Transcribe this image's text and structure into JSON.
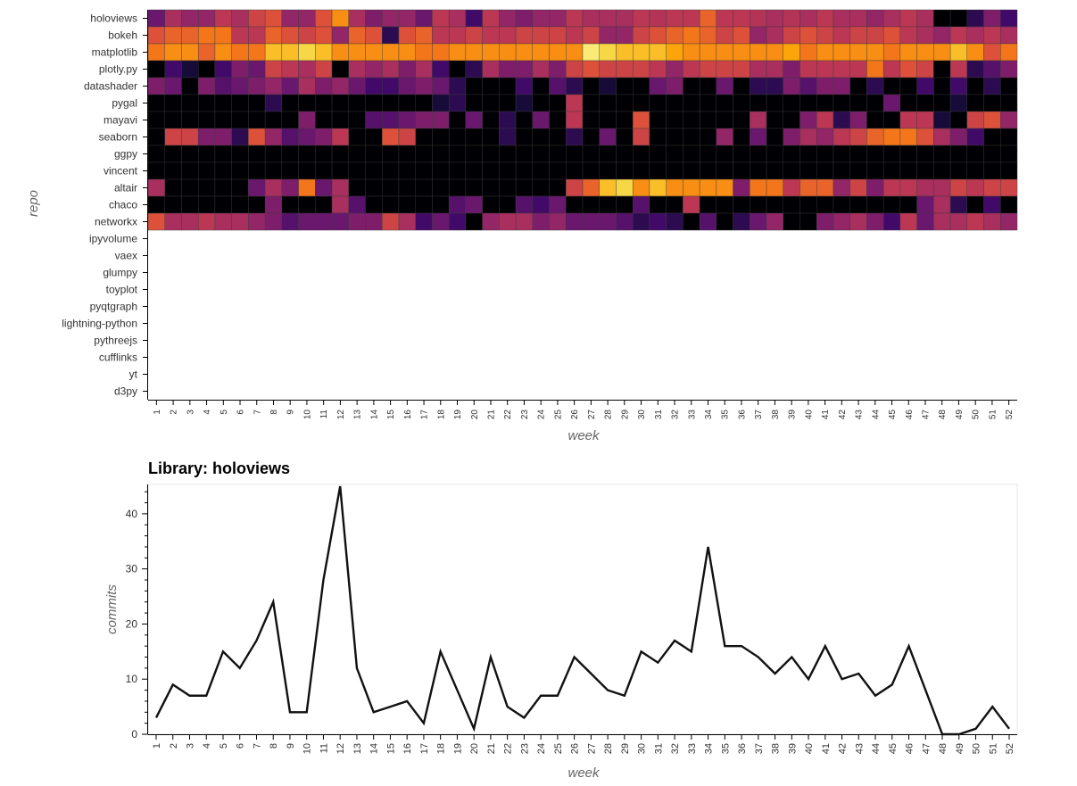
{
  "chart_data": [
    {
      "type": "heatmap",
      "title": "",
      "xlabel": "week",
      "ylabel": "repo",
      "x_categories": [
        "1",
        "2",
        "3",
        "4",
        "5",
        "6",
        "7",
        "8",
        "9",
        "10",
        "11",
        "12",
        "13",
        "14",
        "15",
        "16",
        "17",
        "18",
        "19",
        "20",
        "21",
        "22",
        "23",
        "24",
        "25",
        "26",
        "27",
        "28",
        "29",
        "30",
        "31",
        "32",
        "33",
        "34",
        "35",
        "36",
        "37",
        "38",
        "39",
        "40",
        "41",
        "42",
        "43",
        "44",
        "45",
        "46",
        "47",
        "48",
        "49",
        "50",
        "51",
        "52"
      ],
      "y_categories": [
        "holoviews",
        "bokeh",
        "matplotlib",
        "plotly.py",
        "datashader",
        "pygal",
        "mayavi",
        "seaborn",
        "ggpy",
        "vincent",
        "altair",
        "chaco",
        "networkx",
        "ipyvolume",
        "vaex",
        "glumpy",
        "toyplot",
        "pyqtgraph",
        "lightning-python",
        "pythreejs",
        "cufflinks",
        "yt",
        "d3py"
      ],
      "colormap": "inferno",
      "color_scale": "per-repo relative commit intensity (0 = black, 1 = pale yellow)",
      "grid": true,
      "legend": "none",
      "rows": [
        {
          "repo": "holoviews",
          "values": [
            0.3,
            0.45,
            0.4,
            0.4,
            0.5,
            0.45,
            0.55,
            0.6,
            0.4,
            0.4,
            0.6,
            0.75,
            0.45,
            0.35,
            0.4,
            0.4,
            0.3,
            0.5,
            0.45,
            0.2,
            0.5,
            0.4,
            0.35,
            0.4,
            0.4,
            0.5,
            0.45,
            0.45,
            0.45,
            0.5,
            0.48,
            0.5,
            0.5,
            0.65,
            0.5,
            0.5,
            0.48,
            0.45,
            0.48,
            0.45,
            0.5,
            0.45,
            0.45,
            0.4,
            0.45,
            0.5,
            0.45,
            0.0,
            0.0,
            0.15,
            0.35,
            0.2
          ]
        },
        {
          "repo": "bokeh",
          "values": [
            0.6,
            0.65,
            0.65,
            0.7,
            0.7,
            0.5,
            0.5,
            0.65,
            0.6,
            0.55,
            0.6,
            0.4,
            0.65,
            0.6,
            0.15,
            0.6,
            0.65,
            0.5,
            0.5,
            0.55,
            0.5,
            0.5,
            0.55,
            0.55,
            0.55,
            0.5,
            0.55,
            0.4,
            0.4,
            0.55,
            0.6,
            0.65,
            0.7,
            0.65,
            0.55,
            0.6,
            0.4,
            0.45,
            0.55,
            0.6,
            0.55,
            0.5,
            0.55,
            0.55,
            0.6,
            0.5,
            0.45,
            0.4,
            0.5,
            0.45,
            0.5,
            0.45
          ]
        },
        {
          "repo": "matplotlib",
          "values": [
            0.7,
            0.75,
            0.75,
            0.65,
            0.75,
            0.7,
            0.7,
            0.85,
            0.85,
            0.9,
            0.85,
            0.75,
            0.75,
            0.75,
            0.75,
            0.75,
            0.7,
            0.7,
            0.75,
            0.75,
            0.75,
            0.75,
            0.75,
            0.75,
            0.75,
            0.75,
            0.95,
            0.9,
            0.85,
            0.85,
            0.85,
            0.8,
            0.75,
            0.75,
            0.75,
            0.75,
            0.75,
            0.75,
            0.8,
            0.7,
            0.75,
            0.75,
            0.75,
            0.75,
            0.7,
            0.75,
            0.75,
            0.75,
            0.85,
            0.75,
            0.6,
            0.7
          ]
        },
        {
          "repo": "plotly.py",
          "values": [
            0.0,
            0.2,
            0.1,
            0.0,
            0.2,
            0.35,
            0.3,
            0.55,
            0.5,
            0.45,
            0.55,
            0.0,
            0.45,
            0.4,
            0.45,
            0.35,
            0.45,
            0.2,
            0.0,
            0.15,
            0.45,
            0.35,
            0.35,
            0.45,
            0.35,
            0.55,
            0.6,
            0.55,
            0.55,
            0.55,
            0.5,
            0.4,
            0.5,
            0.55,
            0.55,
            0.55,
            0.45,
            0.45,
            0.35,
            0.5,
            0.5,
            0.5,
            0.5,
            0.7,
            0.5,
            0.6,
            0.55,
            0.0,
            0.5,
            0.15,
            0.25,
            0.35
          ]
        },
        {
          "repo": "datashader",
          "values": [
            0.35,
            0.3,
            0.0,
            0.35,
            0.25,
            0.3,
            0.35,
            0.4,
            0.3,
            0.45,
            0.35,
            0.4,
            0.3,
            0.2,
            0.2,
            0.3,
            0.35,
            0.3,
            0.15,
            0.0,
            0.0,
            0.0,
            0.2,
            0.0,
            0.25,
            0.15,
            0.0,
            0.1,
            0.0,
            0.0,
            0.3,
            0.35,
            0.0,
            0.0,
            0.3,
            0.0,
            0.15,
            0.15,
            0.35,
            0.25,
            0.35,
            0.35,
            0.0,
            0.15,
            0.0,
            0.0,
            0.2,
            0.0,
            0.2,
            0.0,
            0.15,
            0.0
          ]
        },
        {
          "repo": "pygal",
          "values": [
            0.0,
            0.0,
            0.0,
            0.0,
            0.0,
            0.0,
            0.0,
            0.15,
            0.0,
            0.0,
            0.0,
            0.0,
            0.0,
            0.0,
            0.0,
            0.0,
            0.0,
            0.1,
            0.15,
            0.0,
            0.0,
            0.0,
            0.1,
            0.0,
            0.0,
            0.5,
            0.0,
            0.0,
            0.0,
            0.0,
            0.0,
            0.0,
            0.0,
            0.0,
            0.0,
            0.0,
            0.0,
            0.0,
            0.0,
            0.0,
            0.0,
            0.0,
            0.0,
            0.0,
            0.3,
            0.0,
            0.0,
            0.0,
            0.1,
            0.0,
            0.0,
            0.0
          ]
        },
        {
          "repo": "mayavi",
          "values": [
            0.0,
            0.0,
            0.0,
            0.0,
            0.0,
            0.0,
            0.0,
            0.0,
            0.0,
            0.35,
            0.0,
            0.0,
            0.0,
            0.25,
            0.25,
            0.3,
            0.35,
            0.35,
            0.0,
            0.3,
            0.0,
            0.15,
            0.0,
            0.3,
            0.0,
            0.5,
            0.0,
            0.0,
            0.0,
            0.6,
            0.0,
            0.0,
            0.0,
            0.0,
            0.0,
            0.0,
            0.45,
            0.0,
            0.0,
            0.35,
            0.5,
            0.15,
            0.35,
            0.0,
            0.0,
            0.5,
            0.5,
            0.1,
            0.0,
            0.55,
            0.6,
            0.4
          ]
        },
        {
          "repo": "seaborn",
          "values": [
            0.0,
            0.55,
            0.55,
            0.35,
            0.35,
            0.15,
            0.6,
            0.4,
            0.25,
            0.3,
            0.35,
            0.5,
            0.0,
            0.0,
            0.6,
            0.55,
            0.0,
            0.0,
            0.0,
            0.0,
            0.0,
            0.15,
            0.0,
            0.0,
            0.0,
            0.15,
            0.0,
            0.3,
            0.0,
            0.55,
            0.0,
            0.0,
            0.0,
            0.0,
            0.4,
            0.0,
            0.3,
            0.0,
            0.35,
            0.45,
            0.4,
            0.5,
            0.55,
            0.65,
            0.7,
            0.7,
            0.6,
            0.45,
            0.35,
            0.2,
            0.0,
            0.0
          ]
        },
        {
          "repo": "ggpy",
          "values": [
            0.0,
            0.0,
            0.0,
            0.0,
            0.0,
            0.0,
            0.0,
            0.0,
            0.0,
            0.0,
            0.0,
            0.0,
            0.0,
            0.0,
            0.0,
            0.0,
            0.0,
            0.0,
            0.0,
            0.0,
            0.0,
            0.0,
            0.0,
            0.0,
            0.0,
            0.0,
            0.0,
            0.0,
            0.0,
            0.0,
            0.0,
            0.0,
            0.0,
            0.0,
            0.0,
            0.0,
            0.0,
            0.0,
            0.0,
            0.0,
            0.0,
            0.0,
            0.0,
            0.0,
            0.0,
            0.0,
            0.0,
            0.0,
            0.0,
            0.0,
            0.0,
            0.0
          ]
        },
        {
          "repo": "vincent",
          "values": [
            0.0,
            0.0,
            0.0,
            0.0,
            0.0,
            0.0,
            0.0,
            0.0,
            0.0,
            0.0,
            0.0,
            0.0,
            0.0,
            0.0,
            0.0,
            0.0,
            0.0,
            0.0,
            0.0,
            0.0,
            0.0,
            0.0,
            0.0,
            0.0,
            0.0,
            0.0,
            0.0,
            0.0,
            0.0,
            0.0,
            0.0,
            0.0,
            0.0,
            0.0,
            0.0,
            0.0,
            0.0,
            0.0,
            0.0,
            0.0,
            0.0,
            0.0,
            0.0,
            0.0,
            0.0,
            0.0,
            0.0,
            0.0,
            0.0,
            0.0,
            0.0,
            0.0
          ]
        },
        {
          "repo": "altair",
          "values": [
            0.45,
            0.0,
            0.0,
            0.0,
            0.0,
            0.0,
            0.3,
            0.45,
            0.35,
            0.7,
            0.3,
            0.45,
            0.0,
            0.0,
            0.0,
            0.0,
            0.0,
            0.0,
            0.0,
            0.0,
            0.0,
            0.0,
            0.0,
            0.0,
            0.0,
            0.55,
            0.65,
            0.85,
            0.9,
            0.75,
            0.85,
            0.75,
            0.75,
            0.75,
            0.75,
            0.35,
            0.7,
            0.7,
            0.5,
            0.65,
            0.65,
            0.4,
            0.55,
            0.35,
            0.5,
            0.5,
            0.45,
            0.45,
            0.55,
            0.5,
            0.55,
            0.55
          ]
        },
        {
          "repo": "chaco",
          "values": [
            0.0,
            0.0,
            0.0,
            0.0,
            0.0,
            0.0,
            0.0,
            0.35,
            0.0,
            0.0,
            0.0,
            0.45,
            0.25,
            0.0,
            0.0,
            0.0,
            0.0,
            0.0,
            0.25,
            0.3,
            0.0,
            0.0,
            0.25,
            0.2,
            0.3,
            0.0,
            0.0,
            0.0,
            0.0,
            0.25,
            0.0,
            0.0,
            0.5,
            0.0,
            0.0,
            0.0,
            0.0,
            0.0,
            0.0,
            0.0,
            0.0,
            0.0,
            0.0,
            0.0,
            0.0,
            0.0,
            0.3,
            0.45,
            0.15,
            0.0,
            0.2,
            0.0
          ]
        },
        {
          "repo": "networkx",
          "values": [
            0.6,
            0.45,
            0.45,
            0.5,
            0.45,
            0.45,
            0.4,
            0.35,
            0.25,
            0.3,
            0.3,
            0.3,
            0.35,
            0.35,
            0.55,
            0.45,
            0.2,
            0.3,
            0.2,
            0.0,
            0.4,
            0.45,
            0.45,
            0.35,
            0.4,
            0.3,
            0.3,
            0.3,
            0.25,
            0.15,
            0.2,
            0.15,
            0.0,
            0.25,
            0.0,
            0.15,
            0.3,
            0.4,
            0.0,
            0.0,
            0.35,
            0.4,
            0.45,
            0.35,
            0.2,
            0.5,
            0.3,
            0.45,
            0.45,
            0.5,
            0.45,
            0.4
          ]
        },
        {
          "repo": "ipyvolume",
          "values": []
        },
        {
          "repo": "vaex",
          "values": []
        },
        {
          "repo": "glumpy",
          "values": []
        },
        {
          "repo": "toyplot",
          "values": []
        },
        {
          "repo": "pyqtgraph",
          "values": []
        },
        {
          "repo": "lightning-python",
          "values": []
        },
        {
          "repo": "pythreejs",
          "values": []
        },
        {
          "repo": "cufflinks",
          "values": []
        },
        {
          "repo": "yt",
          "values": []
        },
        {
          "repo": "d3py",
          "values": []
        }
      ]
    },
    {
      "type": "line",
      "title": "Library: holoviews",
      "xlabel": "week",
      "ylabel": "commits",
      "x": [
        "1",
        "2",
        "3",
        "4",
        "5",
        "6",
        "7",
        "8",
        "9",
        "10",
        "11",
        "12",
        "13",
        "14",
        "15",
        "16",
        "17",
        "18",
        "19",
        "20",
        "21",
        "22",
        "23",
        "24",
        "25",
        "26",
        "27",
        "28",
        "29",
        "30",
        "31",
        "32",
        "33",
        "34",
        "35",
        "36",
        "37",
        "38",
        "39",
        "40",
        "41",
        "42",
        "43",
        "44",
        "45",
        "46",
        "47",
        "48",
        "49",
        "50",
        "51",
        "52"
      ],
      "y_ticks": [
        0,
        10,
        20,
        30,
        40
      ],
      "ylim": [
        0,
        45
      ],
      "grid": false,
      "legend": "none",
      "line_color": "#111111",
      "series": [
        {
          "values": [
            3,
            9,
            7,
            7,
            15,
            12,
            17,
            24,
            4,
            4,
            28,
            45,
            12,
            4,
            5,
            6,
            2,
            15,
            8,
            1,
            14,
            5,
            3,
            7,
            7,
            14,
            11,
            8,
            7,
            15,
            13,
            17,
            15,
            34,
            16,
            16,
            14,
            11,
            14,
            10,
            16,
            10,
            11,
            7,
            9,
            16,
            8,
            0,
            0,
            1,
            5,
            1
          ]
        }
      ]
    }
  ]
}
